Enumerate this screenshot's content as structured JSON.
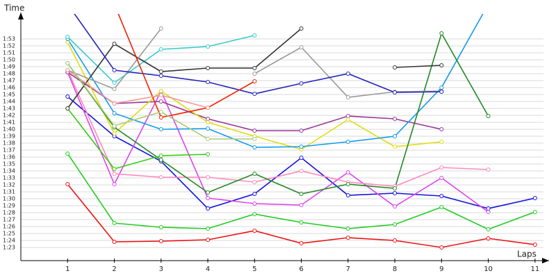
{
  "chart_data": {
    "type": "line",
    "y_label": "Time",
    "x_label": "Laps",
    "x": [
      1,
      2,
      3,
      4,
      5,
      6,
      7,
      8,
      9,
      10,
      11
    ],
    "xlim": [
      0,
      11.3
    ],
    "xticks": [
      1,
      2,
      3,
      4,
      5,
      6,
      7,
      8,
      9,
      10,
      11
    ],
    "ylim": [
      81.1,
      116.4
    ],
    "yticks": [
      {
        "value": 83,
        "label": "1:23"
      },
      {
        "value": 84,
        "label": "1:24"
      },
      {
        "value": 85,
        "label": "1:25"
      },
      {
        "value": 86,
        "label": "1:26"
      },
      {
        "value": 87,
        "label": "1:27"
      },
      {
        "value": 88,
        "label": "1:28"
      },
      {
        "value": 89,
        "label": "1:29"
      },
      {
        "value": 90,
        "label": "1:30"
      },
      {
        "value": 91,
        "label": "1:31"
      },
      {
        "value": 92,
        "label": "1:32"
      },
      {
        "value": 93,
        "label": "1:33"
      },
      {
        "value": 94,
        "label": "1:34"
      },
      {
        "value": 95,
        "label": "1:35"
      },
      {
        "value": 96,
        "label": "1:36"
      },
      {
        "value": 97,
        "label": "1:37"
      },
      {
        "value": 98,
        "label": "1:38"
      },
      {
        "value": 99,
        "label": "1:39"
      },
      {
        "value": 100,
        "label": "1:40"
      },
      {
        "value": 101,
        "label": "1:41"
      },
      {
        "value": 102,
        "label": "1:42"
      },
      {
        "value": 103,
        "label": "1:43"
      },
      {
        "value": 104,
        "label": "1:44"
      },
      {
        "value": 105,
        "label": "1:45"
      },
      {
        "value": 106,
        "label": "1:46"
      },
      {
        "value": 107,
        "label": "1:47"
      },
      {
        "value": 108,
        "label": "1:48"
      },
      {
        "value": 109,
        "label": "1:49"
      },
      {
        "value": 110,
        "label": "1:50"
      },
      {
        "value": 111,
        "label": "1:51"
      },
      {
        "value": 112,
        "label": "1:52"
      },
      {
        "value": 113,
        "label": "1:53"
      }
    ],
    "grid": true,
    "series": [
      {
        "color": "#ee1111",
        "values": [
          92.1,
          83.8,
          83.9,
          84.1,
          85.4,
          83.6,
          84.4,
          84.0,
          83.0,
          84.3,
          83.4
        ]
      },
      {
        "color": "#22cc22",
        "values": [
          96.5,
          86.5,
          85.9,
          85.7,
          87.8,
          86.6,
          85.7,
          86.3,
          88.8,
          85.6,
          88.1
        ]
      },
      {
        "color": "#1111dd",
        "values": [
          104.7,
          99.0,
          95.4,
          88.6,
          90.7,
          95.9,
          90.5,
          90.8,
          90.4,
          88.6,
          90.1
        ]
      },
      {
        "color": "#dd44ee",
        "values": [
          108.2,
          92.1,
          105.5,
          90.1,
          89.3,
          89.1,
          93.8,
          88.9,
          93.0,
          88.1,
          null
        ]
      },
      {
        "color": "#ff88bb",
        "values": [
          108.5,
          93.6,
          93.1,
          93.1,
          92.4,
          94.0,
          92.4,
          91.8,
          94.5,
          94.2,
          null
        ]
      },
      {
        "color": "#993399",
        "values": [
          108.2,
          103.7,
          104.0,
          101.5,
          99.8,
          99.8,
          101.9,
          101.5,
          100.0,
          null,
          null
        ]
      },
      {
        "color": "#dddd11",
        "values": [
          112.5,
          99.4,
          105.5,
          101.0,
          99.0,
          97.1,
          101.4,
          97.5,
          98.2,
          null,
          null
        ]
      },
      {
        "color": "#1199ee",
        "values": [
          113.0,
          102.3,
          100.0,
          100.1,
          97.4,
          97.5,
          98.2,
          99.0,
          106.0,
          118.0,
          null
        ]
      },
      {
        "color": "#228822",
        "values": [
          109.5,
          100.3,
          95.6,
          90.9,
          93.6,
          90.7,
          92.1,
          91.5,
          113.8,
          101.9,
          null
        ]
      },
      {
        "color": "#33cc11",
        "values": [
          103.0,
          94.3,
          96.2,
          96.4,
          null,
          null,
          null,
          null,
          null,
          null,
          null
        ]
      },
      {
        "color": "#33cccc",
        "values": [
          113.3,
          106.7,
          111.5,
          111.9,
          113.5,
          null,
          null,
          null,
          null,
          null,
          null
        ]
      },
      {
        "color": "#333333",
        "values": [
          103.0,
          112.3,
          108.3,
          108.8,
          108.8,
          114.5,
          null,
          108.9,
          109.2,
          null,
          null
        ]
      },
      {
        "color": "#999999",
        "values": [
          108.5,
          105.8,
          114.5,
          null,
          108.0,
          111.8,
          104.6,
          105.4,
          105.5,
          null,
          null
        ]
      },
      {
        "color": "#2222bb",
        "values": [
          118.0,
          108.5,
          107.7,
          106.8,
          105.1,
          106.6,
          108.0,
          105.3,
          105.4,
          null,
          null
        ]
      },
      {
        "color": "#ee2200",
        "values": [
          null,
          118.0,
          101.7,
          103.1,
          106.9,
          null,
          null,
          null,
          null,
          null,
          null
        ]
      },
      {
        "color": "#ee9999",
        "values": [
          108.5,
          103.7,
          104.9,
          103.1,
          null,
          null,
          null,
          null,
          null,
          null,
          null
        ]
      },
      {
        "color": "#aacc77",
        "values": [
          109.5,
          100.5,
          102.5,
          98.6,
          98.6,
          null,
          null,
          null,
          null,
          null,
          null
        ]
      }
    ]
  }
}
